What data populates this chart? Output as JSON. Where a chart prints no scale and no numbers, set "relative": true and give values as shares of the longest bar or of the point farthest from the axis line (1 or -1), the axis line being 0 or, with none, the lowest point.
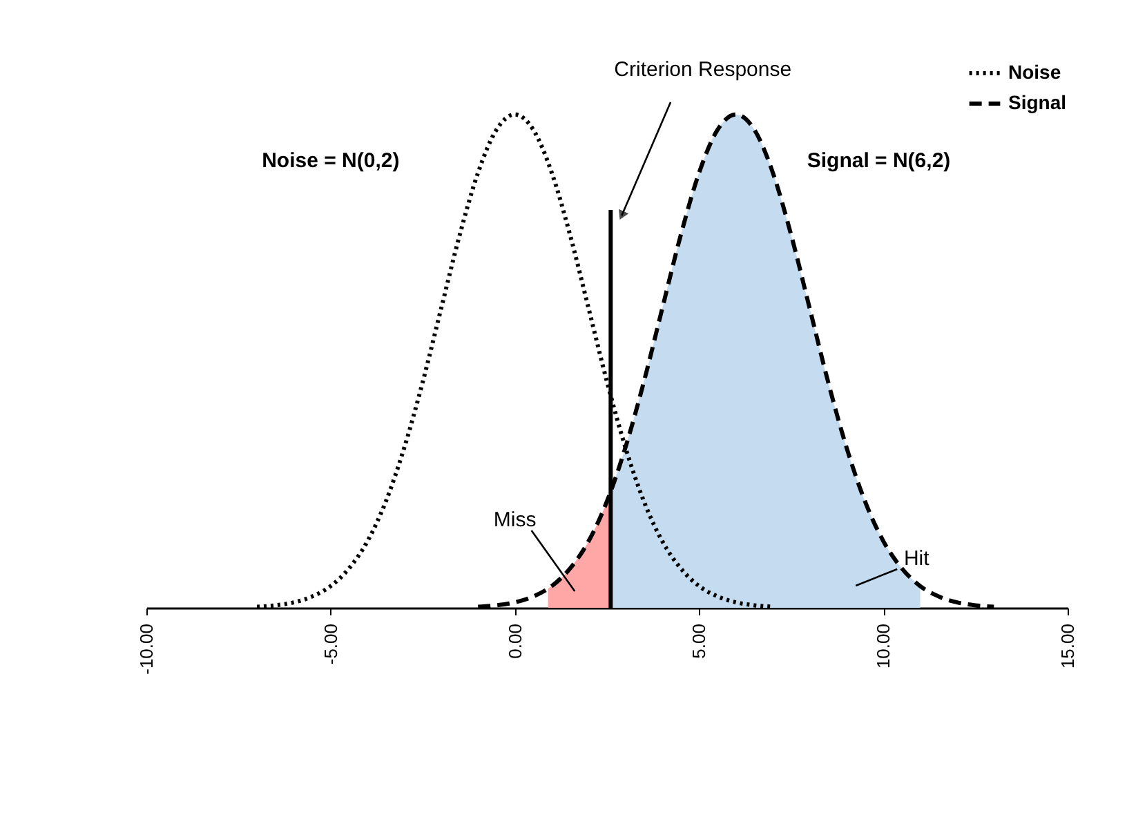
{
  "chart_data": {
    "type": "line",
    "relative": true,
    "xlim": [
      -10,
      15
    ],
    "xticks": [
      {
        "value": -10,
        "label": "-10.00"
      },
      {
        "value": -5,
        "label": "-5.00"
      },
      {
        "value": 0,
        "label": "0.00"
      },
      {
        "value": 5,
        "label": "5.00"
      },
      {
        "value": 10,
        "label": "10.00"
      },
      {
        "value": 15,
        "label": "15.00"
      }
    ],
    "series": [
      {
        "name": "Noise",
        "color": "#000000",
        "line_style": "dotted",
        "x": [
          -7,
          -6.5,
          -6,
          -5.5,
          -5,
          -4.5,
          -4,
          -3.5,
          -3,
          -2.5,
          -2,
          -1.5,
          -1,
          -0.5,
          0,
          0.5,
          1,
          1.5,
          2,
          2.5,
          3,
          3.5,
          4,
          4.5,
          5,
          5.5,
          6,
          6.5,
          7
        ],
        "values": [
          0.002,
          0.005,
          0.011,
          0.023,
          0.044,
          0.08,
          0.135,
          0.216,
          0.325,
          0.458,
          0.607,
          0.755,
          0.882,
          0.969,
          1,
          0.969,
          0.882,
          0.755,
          0.607,
          0.458,
          0.325,
          0.216,
          0.135,
          0.08,
          0.044,
          0.023,
          0.011,
          0.005,
          0.002
        ]
      },
      {
        "name": "Signal",
        "color": "#000000",
        "line_style": "dashed",
        "x": [
          -1,
          -0.5,
          0,
          0.5,
          1,
          1.5,
          2,
          2.5,
          3,
          3.5,
          4,
          4.5,
          5,
          5.5,
          6,
          6.5,
          7,
          7.5,
          8,
          8.5,
          9,
          9.5,
          10,
          10.5,
          11,
          11.5,
          12,
          12.5,
          13
        ],
        "values": [
          0.002,
          0.005,
          0.011,
          0.023,
          0.044,
          0.08,
          0.135,
          0.216,
          0.325,
          0.458,
          0.607,
          0.755,
          0.882,
          0.969,
          1,
          0.969,
          0.882,
          0.755,
          0.607,
          0.458,
          0.325,
          0.216,
          0.135,
          0.08,
          0.044,
          0.023,
          0.011,
          0.005,
          0.002
        ]
      },
      {
        "type": "area",
        "color": "#c5dcf0",
        "x": [
          2.6,
          3,
          3.5,
          4,
          4.5,
          5,
          5.5,
          6,
          6.5,
          7,
          7.5,
          8,
          8.5,
          9,
          9.5,
          10,
          10.5,
          11
        ],
        "values": [
          0.236,
          0.325,
          0.458,
          0.607,
          0.755,
          0.882,
          0.969,
          1,
          0.969,
          0.882,
          0.755,
          0.607,
          0.458,
          0.325,
          0.216,
          0.135,
          0.08,
          0.044
        ]
      },
      {
        "type": "area",
        "color": "#ffa6a6",
        "x": [
          0.9,
          1,
          1.5,
          2,
          2.5,
          2.6
        ],
        "values": [
          0.039,
          0.044,
          0.08,
          0.135,
          0.216,
          0.236
        ]
      }
    ],
    "ref_lines": [
      {
        "axis": "x",
        "value": 2.6,
        "label": "Criterion Response",
        "color": "#000000"
      }
    ],
    "annotations": [
      "Noise = N(0,2)",
      "Signal = N(6,2)",
      "Miss",
      "Hit"
    ],
    "legend": "top right",
    "grid": false
  }
}
